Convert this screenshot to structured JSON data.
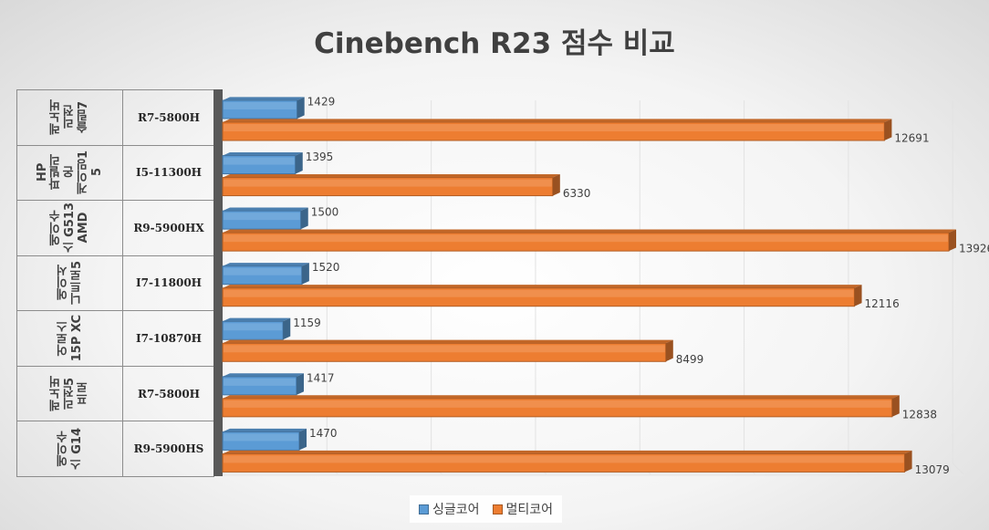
{
  "chart_data": {
    "type": "bar",
    "orientation": "horizontal",
    "title": "Cinebench R23 점수 비교",
    "categories": [
      {
        "model": "레노버\n리전\n슬림7",
        "cpu": "R7-5800H"
      },
      {
        "model": "HP\n파빌리\n온\n게이밍1\n5",
        "cpu": "I5-11300H"
      },
      {
        "model": "에이수\n스 G513\nAMD",
        "cpu": "R9-5900HX"
      },
      {
        "model": "에이서\n니트로5",
        "cpu": "I7-11800H"
      },
      {
        "model": "어로스\n15P XC",
        "cpu": "I7-10870H"
      },
      {
        "model": "레노버\n리전5\n프로",
        "cpu": "R7-5800H"
      },
      {
        "model": "에이수\n스 G14",
        "cpu": "R9-5900HS"
      }
    ],
    "series": [
      {
        "name": "싱글코어",
        "color": "#5b9bd5",
        "values": [
          1429,
          1395,
          1500,
          1520,
          1159,
          1417,
          1470
        ]
      },
      {
        "name": "멀티코어",
        "color": "#ed7d31",
        "values": [
          12691,
          6330,
          13926,
          12116,
          8499,
          12838,
          13079
        ]
      }
    ],
    "xlim": [
      0,
      14000
    ],
    "grid": true,
    "legend_position": "bottom",
    "data_labels": true
  }
}
